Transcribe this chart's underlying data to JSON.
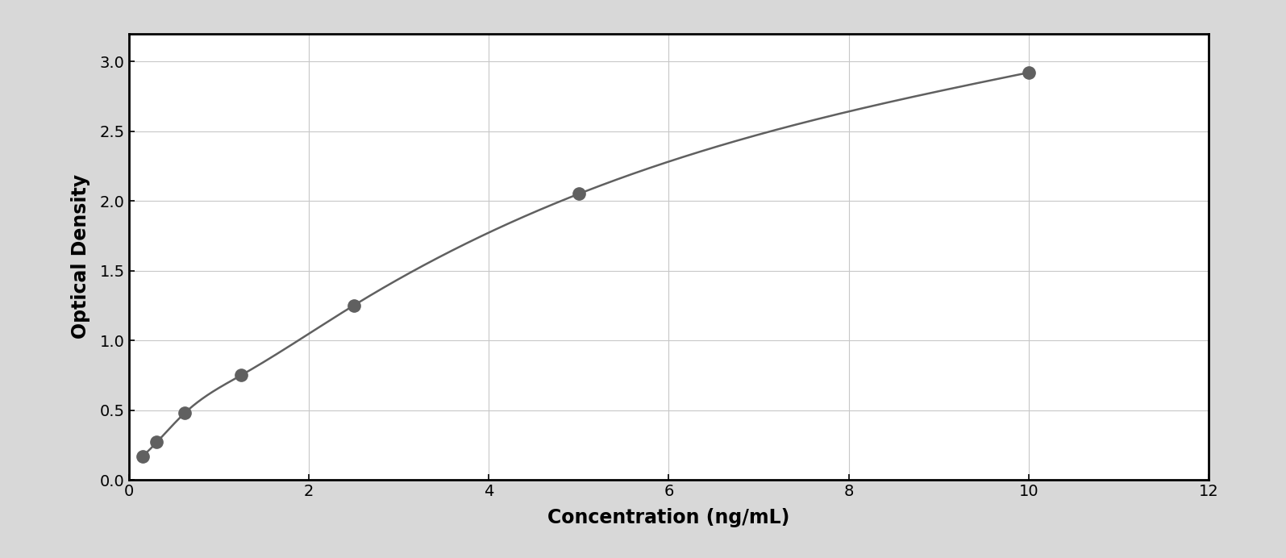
{
  "x_data": [
    0.156,
    0.313,
    0.625,
    1.25,
    2.5,
    5.0,
    10.0
  ],
  "y_data": [
    0.17,
    0.27,
    0.48,
    0.75,
    1.25,
    2.05,
    2.92
  ],
  "xlabel": "Concentration (ng/mL)",
  "ylabel": "Optical Density",
  "xlim": [
    0,
    12
  ],
  "ylim": [
    0,
    3.2
  ],
  "xticks": [
    0,
    2,
    4,
    6,
    8,
    10,
    12
  ],
  "yticks": [
    0,
    0.5,
    1.0,
    1.5,
    2.0,
    2.5,
    3.0
  ],
  "marker_color": "#606060",
  "line_color": "#606060",
  "grid_color": "#c8c8c8",
  "plot_bg": "#ffffff",
  "outer_bg": "#d8d8d8",
  "marker_size": 11,
  "line_width": 1.8,
  "xlabel_fontsize": 17,
  "ylabel_fontsize": 17,
  "tick_fontsize": 14,
  "xlabel_fontweight": "bold",
  "ylabel_fontweight": "bold"
}
